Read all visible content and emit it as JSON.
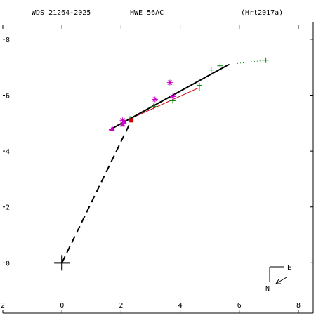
{
  "header": {
    "left": "WDS 21264-2025",
    "center": "HWE  56AC",
    "right": "(Hrt2017a)"
  },
  "compass": {
    "east_label": "E",
    "north_label": "N"
  },
  "colors": {
    "axes": "#000000",
    "orbit": "#000000",
    "separation_line": "#000000",
    "secondary_fit": "#cc0000",
    "plus_marks": "#008800",
    "star_marks": "#cc00cc",
    "triangle_marks": "#cc00cc",
    "filled_marks": "#cc0000"
  },
  "chart_data": {
    "type": "scatter",
    "title": "",
    "xlabel": "",
    "ylabel": "",
    "xlim": [
      -2,
      8.5
    ],
    "ylim": [
      -1.8,
      8.6
    ],
    "x_ticks": [
      -2,
      0,
      2,
      4,
      6,
      8
    ],
    "x_tick_labels": [
      "2",
      "0",
      "2",
      "4",
      "6",
      "8"
    ],
    "y_ticks": [
      0,
      2,
      4,
      6,
      8
    ],
    "y_tick_labels": [
      "0",
      "2",
      "4",
      "6",
      "8"
    ],
    "grid": false,
    "primary": {
      "x": 0,
      "y": 0
    },
    "orbit_segment": {
      "from": [
        1.6,
        4.75
      ],
      "to": [
        5.65,
        7.1
      ]
    },
    "secondary_fit": {
      "from": [
        2.3,
        5.15
      ],
      "to": [
        4.6,
        6.25
      ]
    },
    "separation_line": {
      "from": [
        0,
        0
      ],
      "to": [
        2.35,
        5.1
      ]
    },
    "residual_dotted": [
      {
        "from": [
          5.65,
          7.1
        ],
        "to": [
          6.9,
          7.25
        ]
      }
    ],
    "series": [
      {
        "marker": "plus",
        "x": [
          2.3,
          3.1,
          3.75,
          3.75,
          4.65,
          4.65,
          5.05,
          5.35,
          6.9
        ],
        "y": [
          5.15,
          5.6,
          5.8,
          5.95,
          6.25,
          6.35,
          6.9,
          7.05,
          7.25
        ]
      },
      {
        "marker": "star",
        "x": [
          2.05,
          3.15,
          3.65,
          3.75
        ],
        "y": [
          5.1,
          5.85,
          6.45,
          5.95
        ]
      },
      {
        "marker": "triangle",
        "x": [
          1.7,
          2.05,
          2.1
        ],
        "y": [
          4.8,
          4.95,
          5.05
        ]
      },
      {
        "marker": "filled",
        "x": [
          2.35
        ],
        "y": [
          5.1
        ]
      }
    ]
  }
}
